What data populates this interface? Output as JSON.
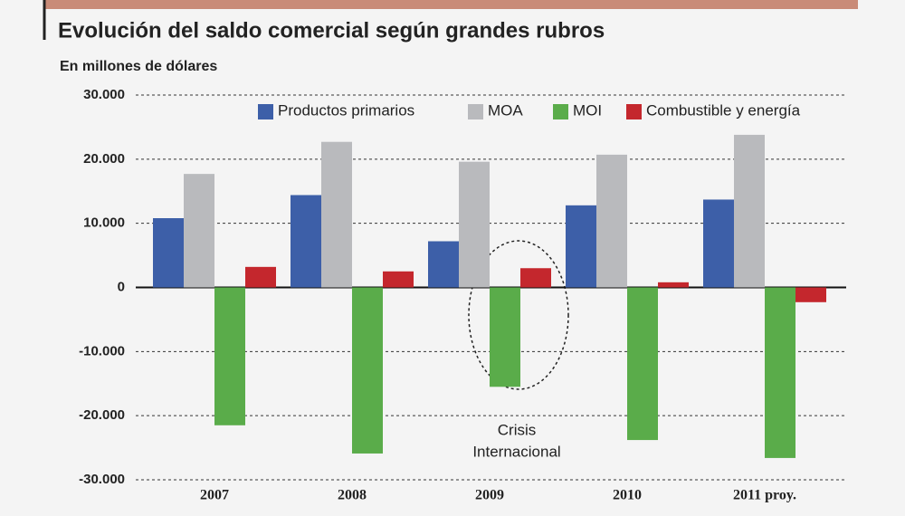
{
  "chart_data": {
    "type": "bar",
    "title": "Evolución del saldo comercial según grandes rubros",
    "subtitle": "En millones de dólares",
    "categories": [
      "2007",
      "2008",
      "2009",
      "2010",
      "2011 proy."
    ],
    "series": [
      {
        "name": "Productos primarios",
        "color": "#3d5fa8",
        "values": [
          10800,
          14400,
          7200,
          12800,
          13700
        ]
      },
      {
        "name": "MOA",
        "color": "#b9babd",
        "values": [
          17700,
          22700,
          19600,
          20700,
          23800
        ]
      },
      {
        "name": "MOI",
        "color": "#5aac4a",
        "values": [
          -21500,
          -25900,
          -15500,
          -23800,
          -26600
        ]
      },
      {
        "name": "Combustible y energía",
        "color": "#c4272d",
        "values": [
          3200,
          2500,
          3000,
          800,
          -2300
        ]
      }
    ],
    "ylim": [
      -30000,
      30000
    ],
    "yticks": [
      {
        "value": -30000,
        "label": "-30.000"
      },
      {
        "value": -20000,
        "label": "-20.000"
      },
      {
        "value": -10000,
        "label": "-10.000"
      },
      0,
      {
        "value": 10000,
        "label": "10.000"
      },
      {
        "value": 20000,
        "label": "20.000"
      },
      {
        "value": 30000,
        "label": "30.000"
      }
    ],
    "grid": true,
    "legend": "top-right",
    "annotation": [
      "Crisis",
      "Internacional"
    ]
  }
}
